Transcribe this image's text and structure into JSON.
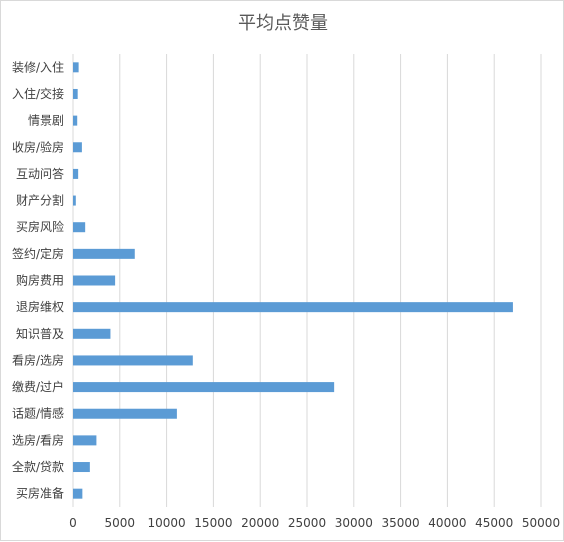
{
  "chart_data": {
    "type": "bar",
    "orientation": "horizontal",
    "title": "平均点赞量",
    "xlabel": "",
    "ylabel": "",
    "categories": [
      "装修/入住",
      "入住/交接",
      "情景剧",
      "收房/验房",
      "互动问答",
      "财产分割",
      "买房风险",
      "签约/定房",
      "购房费用",
      "退房维权",
      "知识普及",
      "看房/选房",
      "缴费/过户",
      "话题/情感",
      "选房/看房",
      "全款/贷款",
      "买房准备"
    ],
    "values": [
      600,
      500,
      450,
      950,
      550,
      300,
      1300,
      6600,
      4500,
      47000,
      4000,
      12800,
      27900,
      11100,
      2500,
      1800,
      1000
    ],
    "xlim": [
      0,
      50000
    ],
    "xticks": [
      "0",
      "5000",
      "10000",
      "15000",
      "20000",
      "25000",
      "30000",
      "35000",
      "40000",
      "45000",
      "50000"
    ],
    "grid": true,
    "bar_color": "#5b9bd5",
    "grid_color": "#d9d9d9",
    "text_color": "#404040"
  }
}
